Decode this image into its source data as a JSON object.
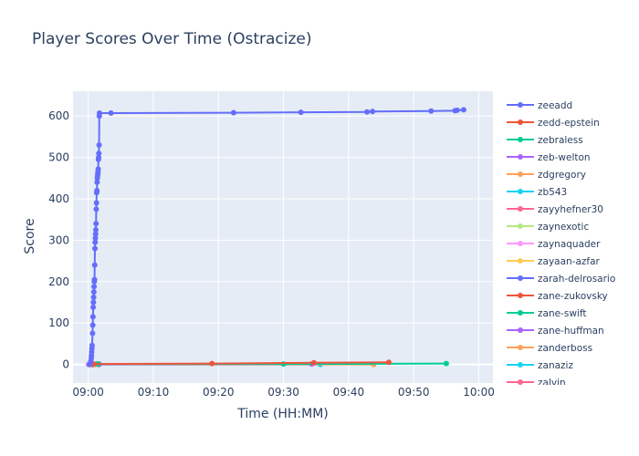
{
  "chart_data": {
    "type": "line",
    "title": "Player Scores Over Time (Ostracize)",
    "xlabel": "Time (HH:MM)",
    "ylabel": "Score",
    "xlim": [
      "08:57:40",
      "10:02:10"
    ],
    "ylim": [
      -45,
      660
    ],
    "x_tick_labels": [
      "09:00",
      "09:10",
      "09:20",
      "09:30",
      "09:40",
      "09:50",
      "10:00"
    ],
    "y_ticks": [
      0,
      100,
      200,
      300,
      400,
      500,
      600
    ],
    "grid": true,
    "legend_position": "right",
    "series": [
      {
        "name": "zeeadd",
        "color": "#636efa",
        "points": [
          [
            "09:00:10",
            0
          ],
          [
            "09:00:20",
            3
          ],
          [
            "09:00:24",
            8
          ],
          [
            "09:00:28",
            15
          ],
          [
            "09:00:30",
            22
          ],
          [
            "09:00:32",
            30
          ],
          [
            "09:00:34",
            38
          ],
          [
            "09:00:36",
            46
          ],
          [
            "09:00:40",
            75
          ],
          [
            "09:00:42",
            95
          ],
          [
            "09:00:44",
            115
          ],
          [
            "09:00:46",
            138
          ],
          [
            "09:00:48",
            150
          ],
          [
            "09:00:50",
            162
          ],
          [
            "09:00:52",
            175
          ],
          [
            "09:00:54",
            188
          ],
          [
            "09:00:56",
            200
          ],
          [
            "09:00:58",
            205
          ],
          [
            "09:01:00",
            240
          ],
          [
            "09:01:02",
            280
          ],
          [
            "09:01:04",
            295
          ],
          [
            "09:01:06",
            305
          ],
          [
            "09:01:08",
            315
          ],
          [
            "09:01:10",
            325
          ],
          [
            "09:01:12",
            340
          ],
          [
            "09:01:14",
            375
          ],
          [
            "09:01:16",
            390
          ],
          [
            "09:01:18",
            415
          ],
          [
            "09:01:20",
            420
          ],
          [
            "09:01:22",
            440
          ],
          [
            "09:01:24",
            450
          ],
          [
            "09:01:26",
            455
          ],
          [
            "09:01:28",
            460
          ],
          [
            "09:01:30",
            465
          ],
          [
            "09:01:32",
            472
          ],
          [
            "09:01:34",
            495
          ],
          [
            "09:01:36",
            500
          ],
          [
            "09:01:38",
            510
          ],
          [
            "09:01:40",
            530
          ],
          [
            "09:01:42",
            600
          ],
          [
            "09:01:44",
            607
          ],
          [
            "09:03:30",
            607
          ],
          [
            "09:22:20",
            608
          ],
          [
            "09:32:40",
            609
          ],
          [
            "09:42:50",
            610
          ],
          [
            "09:43:40",
            611
          ],
          [
            "09:52:40",
            612
          ],
          [
            "09:56:20",
            613
          ],
          [
            "09:56:40",
            614
          ],
          [
            "09:57:40",
            615
          ]
        ]
      },
      {
        "name": "zedd-epstein",
        "color": "#ef553b",
        "points": [
          [
            "09:00:20",
            0
          ],
          [
            "09:00:50",
            1
          ],
          [
            "09:19:00",
            2
          ],
          [
            "09:34:40",
            4
          ],
          [
            "09:46:10",
            5
          ]
        ]
      },
      {
        "name": "zebraless",
        "color": "#00cc96",
        "points": [
          [
            "09:00:30",
            0
          ],
          [
            "09:01:30",
            1
          ],
          [
            "09:30:00",
            1
          ],
          [
            "09:55:00",
            2
          ]
        ]
      },
      {
        "name": "zeb-welton",
        "color": "#ab63fa",
        "points": [
          [
            "09:00:40",
            0
          ],
          [
            "09:01:40",
            0
          ],
          [
            "09:34:20",
            1
          ]
        ]
      },
      {
        "name": "zdgregory",
        "color": "#ffa15a",
        "points": [
          [
            "09:00:20",
            0
          ],
          [
            "09:01:00",
            0
          ],
          [
            "09:43:50",
            0
          ]
        ]
      },
      {
        "name": "zb543",
        "color": "#19d3f3",
        "points": [
          [
            "09:00:50",
            0
          ],
          [
            "09:35:40",
            0
          ]
        ]
      },
      {
        "name": "zayyhefner30",
        "color": "#ff6692",
        "points": [
          [
            "09:00:10",
            0
          ],
          [
            "09:01:20",
            1
          ]
        ]
      },
      {
        "name": "zaynexotic",
        "color": "#b6e880",
        "points": [
          [
            "09:00:20",
            0
          ],
          [
            "09:01:20",
            0
          ]
        ]
      },
      {
        "name": "zaynaquader",
        "color": "#ff97ff",
        "points": [
          [
            "09:00:00",
            0
          ],
          [
            "09:00:40",
            0
          ]
        ]
      },
      {
        "name": "zayaan-azfar",
        "color": "#fecb52",
        "points": [
          [
            "09:00:30",
            0
          ],
          [
            "09:01:10",
            0
          ]
        ]
      },
      {
        "name": "zarah-delrosario",
        "color": "#636efa",
        "points": [
          [
            "09:00:40",
            0
          ],
          [
            "09:01:30",
            0
          ]
        ]
      },
      {
        "name": "zane-zukovsky",
        "color": "#ef553b",
        "points": [
          [
            "09:00:50",
            0
          ],
          [
            "09:01:20",
            1
          ]
        ]
      },
      {
        "name": "zane-swift",
        "color": "#00cc96",
        "points": [
          [
            "09:01:00",
            0
          ],
          [
            "09:01:40",
            1
          ]
        ]
      },
      {
        "name": "zane-huffman",
        "color": "#ab63fa",
        "points": [
          [
            "09:00:40",
            0
          ],
          [
            "09:01:10",
            0
          ]
        ]
      },
      {
        "name": "zanderboss",
        "color": "#ffa15a",
        "points": [
          [
            "09:00:20",
            0
          ],
          [
            "09:00:50",
            0
          ]
        ]
      },
      {
        "name": "zanaziz",
        "color": "#19d3f3",
        "points": [
          [
            "09:00:30",
            0
          ],
          [
            "09:01:00",
            0
          ]
        ]
      },
      {
        "name": "zalvin",
        "color": "#ff6692",
        "points": [
          [
            "09:00:40",
            0
          ],
          [
            "09:01:20",
            0
          ]
        ]
      }
    ]
  }
}
